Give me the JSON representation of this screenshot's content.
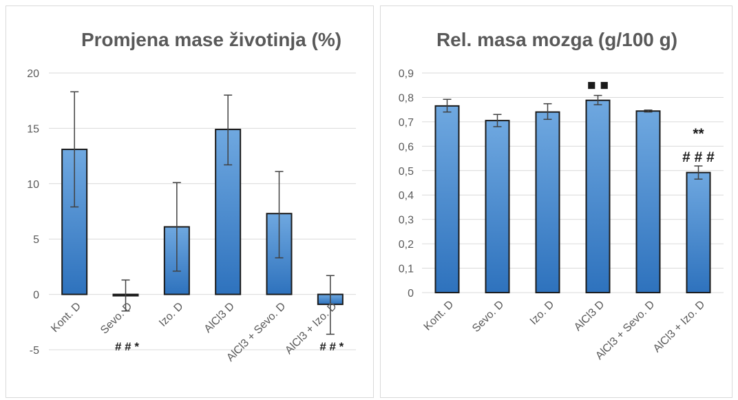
{
  "colors": {
    "bar_top": "#6fa8e0",
    "bar_bottom": "#2e72bd",
    "bar_stroke": "#1a1a1a",
    "grid": "#d9d9d9",
    "axis_text": "#595959",
    "title_text": "#595959",
    "error_bar": "#404040",
    "annotation": "#1a1a1a"
  },
  "chart_data": [
    {
      "type": "bar",
      "title": "Promjena mase životinja (%)",
      "categories": [
        "Kont. D",
        "Sevo. D",
        "Izo. D",
        "AlCl3 D",
        "AlCl3 + Sevo. D",
        "AlCl3 + Izo. D"
      ],
      "values": [
        13.1,
        -0.1,
        6.1,
        14.9,
        7.3,
        -0.9
      ],
      "error_low": [
        7.9,
        -1.5,
        2.1,
        11.7,
        3.3,
        -3.6
      ],
      "error_high": [
        18.3,
        1.3,
        10.1,
        18.0,
        11.1,
        1.7
      ],
      "ylim": [
        -5,
        20
      ],
      "yticks": [
        "-5",
        "0",
        "5",
        "10",
        "15",
        "20"
      ],
      "ytick_values": [
        -5,
        0,
        5,
        10,
        15,
        20
      ],
      "grid": true,
      "annotations": [
        {
          "category_index": 1,
          "text": "# # *"
        },
        {
          "category_index": 5,
          "text": "# # *"
        }
      ]
    },
    {
      "type": "bar",
      "title": "Rel. masa mozga (g/100 g)",
      "categories": [
        "Kont. D",
        "Sevo. D",
        "Izo. D",
        "AlCl3 D",
        "AlCl3 + Sevo. D",
        "AlCl3 + Izo. D"
      ],
      "values": [
        0.765,
        0.705,
        0.74,
        0.788,
        0.744,
        0.492
      ],
      "error_low": [
        0.74,
        0.68,
        0.71,
        0.77,
        0.74,
        0.465
      ],
      "error_high": [
        0.792,
        0.73,
        0.774,
        0.808,
        0.748,
        0.519
      ],
      "ylim": [
        0,
        0.9
      ],
      "yticks": [
        "0",
        "0,1",
        "0,2",
        "0,3",
        "0,4",
        "0,5",
        "0,6",
        "0,7",
        "0,8",
        "0,9"
      ],
      "ytick_values": [
        0,
        0.1,
        0.2,
        0.3,
        0.4,
        0.5,
        0.6,
        0.7,
        0.8,
        0.9
      ],
      "grid": true,
      "annotations": [
        {
          "category_index": 3,
          "text": "■ ■"
        },
        {
          "category_index": 5,
          "text": "**"
        },
        {
          "category_index": 5,
          "text": "# # #"
        }
      ]
    }
  ]
}
